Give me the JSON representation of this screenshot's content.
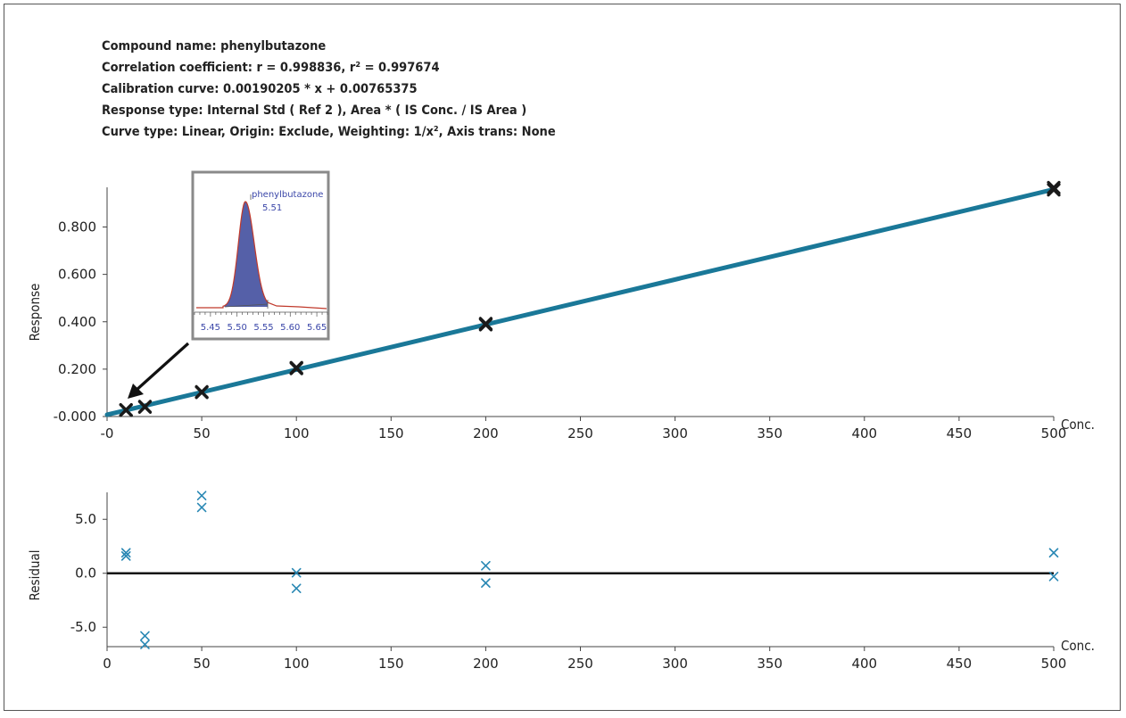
{
  "header": {
    "line1": "Compound name: phenylbutazone",
    "line2": "Correlation coefficient: r = 0.998836, r² = 0.997674",
    "line3": "Calibration curve: 0.00190205 * x + 0.00765375",
    "line4": "Response type: Internal Std ( Ref 2 ), Area * ( IS Conc. / IS Area )",
    "line5": "Curve type: Linear, Origin: Exclude, Weighting: 1/x², Axis trans: None"
  },
  "colors": {
    "curve": "#1a7898",
    "cal_point": "#1a1a1a",
    "residual_point": "#2a88b4",
    "peak_fill": "#5560a8",
    "peak_outline": "#c0392b",
    "inset_text": "#3a46a8"
  },
  "chart_data": [
    {
      "type": "scatter",
      "name": "calibration",
      "xlabel": "Conc.",
      "ylabel": "Response",
      "xlim": [
        0,
        500
      ],
      "ylim": [
        0,
        0.96
      ],
      "x_ticks": [
        0,
        50,
        100,
        150,
        200,
        250,
        300,
        350,
        400,
        450,
        500
      ],
      "x_tick_labels": [
        "-0",
        "50",
        "100",
        "150",
        "200",
        "250",
        "300",
        "350",
        "400",
        "450",
        "500"
      ],
      "y_ticks": [
        0,
        0.2,
        0.4,
        0.6,
        0.8
      ],
      "y_tick_labels": [
        "-0.000",
        "0.200",
        "0.400",
        "0.600",
        "0.800"
      ],
      "fit": {
        "slope": 0.00190205,
        "intercept": 0.00765375,
        "x_range": [
          0,
          500
        ]
      },
      "points": [
        {
          "x": 10,
          "y": 0.027
        },
        {
          "x": 10,
          "y": 0.028
        },
        {
          "x": 20,
          "y": 0.04
        },
        {
          "x": 20,
          "y": 0.042
        },
        {
          "x": 50,
          "y": 0.102
        },
        {
          "x": 50,
          "y": 0.104
        },
        {
          "x": 100,
          "y": 0.203
        },
        {
          "x": 100,
          "y": 0.206
        },
        {
          "x": 200,
          "y": 0.388
        },
        {
          "x": 200,
          "y": 0.392
        },
        {
          "x": 500,
          "y": 0.957
        },
        {
          "x": 500,
          "y": 0.966
        }
      ]
    },
    {
      "type": "scatter",
      "name": "residual",
      "xlabel": "Conc.",
      "ylabel": "Residual",
      "xlim": [
        0,
        500
      ],
      "ylim": [
        -6.8,
        7.5
      ],
      "x_ticks": [
        0,
        50,
        100,
        150,
        200,
        250,
        300,
        350,
        400,
        450,
        500
      ],
      "x_tick_labels": [
        "0",
        "50",
        "100",
        "150",
        "200",
        "250",
        "300",
        "350",
        "400",
        "450",
        "500"
      ],
      "y_ticks": [
        5,
        0,
        -5
      ],
      "y_tick_labels": [
        "5.0",
        "0.0",
        "-5.0"
      ],
      "zero_line": 0,
      "points": [
        {
          "x": 10,
          "y": 1.9
        },
        {
          "x": 10,
          "y": 1.6
        },
        {
          "x": 20,
          "y": -5.8
        },
        {
          "x": 20,
          "y": -6.6
        },
        {
          "x": 50,
          "y": 7.2
        },
        {
          "x": 50,
          "y": 6.1
        },
        {
          "x": 100,
          "y": 0.05
        },
        {
          "x": 100,
          "y": -1.4
        },
        {
          "x": 200,
          "y": 0.7
        },
        {
          "x": 200,
          "y": -0.9
        },
        {
          "x": 500,
          "y": 1.9
        },
        {
          "x": 500,
          "y": -0.3
        }
      ]
    },
    {
      "type": "line",
      "name": "chromatogram-inset",
      "peak_label": "phenylbutazone",
      "peak_rt": "5.51",
      "x_tick_labels": [
        "5.45",
        "5.50",
        "5.55",
        "5.60",
        "5.65"
      ],
      "xlim": [
        5.42,
        5.67
      ]
    }
  ]
}
